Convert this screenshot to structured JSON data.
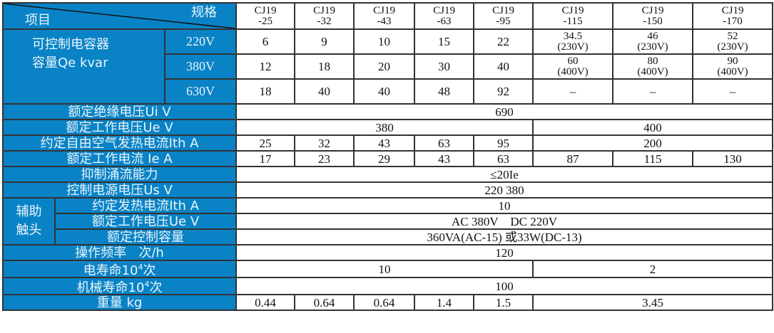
{
  "header": {
    "spec_label": "规格",
    "item_label": "项目",
    "models": [
      [
        "CJ19",
        "-25"
      ],
      [
        "CJ19",
        "-32"
      ],
      [
        "CJ19",
        "-43"
      ],
      [
        "CJ19",
        "-63"
      ],
      [
        "CJ19",
        "-95"
      ],
      [
        "CJ19",
        "-115"
      ],
      [
        "CJ19",
        "-150"
      ],
      [
        "CJ19",
        "-170"
      ]
    ]
  },
  "capacitor": {
    "label_line1": "可控制电容器",
    "label_line2": "容量Qe kvar",
    "rows": [
      {
        "voltage": "220V",
        "values": [
          "6",
          "9",
          "10",
          "15",
          "22"
        ],
        "extra": [
          [
            "34.5",
            "(230V)"
          ],
          [
            "46",
            "(230V)"
          ],
          [
            "52",
            "(230V)"
          ]
        ]
      },
      {
        "voltage": "380V",
        "values": [
          "12",
          "18",
          "20",
          "30",
          "40"
        ],
        "extra": [
          [
            "60",
            "(400V)"
          ],
          [
            "80",
            "(400V)"
          ],
          [
            "90",
            "(400V)"
          ]
        ]
      },
      {
        "voltage": "630V",
        "values": [
          "18",
          "40",
          "40",
          "48",
          "92"
        ],
        "extra": [
          [
            "–"
          ],
          [
            "–"
          ],
          [
            "–"
          ]
        ]
      }
    ]
  },
  "ui": {
    "label": "额定绝缘电压Ui  V",
    "value": "690"
  },
  "ue": {
    "label": "额定工作电压Ue  V",
    "value_a": "380",
    "value_b": "400"
  },
  "ith": {
    "label": "约定自由空气发热电流Ith  A",
    "values": [
      "25",
      "32",
      "43",
      "63",
      "95"
    ],
    "value_b": "200"
  },
  "ie": {
    "label": "额定工作电流 Ie  A",
    "values": [
      "17",
      "23",
      "29",
      "43",
      "63",
      "87",
      "115",
      "130"
    ]
  },
  "surge": {
    "label": "抑制涌流能力",
    "value": "≤20Ie"
  },
  "us": {
    "label": "控制电源电压Us   V",
    "value": "220 380"
  },
  "aux": {
    "label_line1": "辅助",
    "label_line2": "触头",
    "ith": {
      "label": "约定发热电流Ith   A",
      "value": "10"
    },
    "ue": {
      "label": "额定工作电压Ue    V",
      "value": "AC 380V    DC 220V"
    },
    "cap": {
      "label": "额定控制容量",
      "value": "360VA(AC-15) 或33W(DC-13)"
    }
  },
  "freq": {
    "label": "操作频率   次/h",
    "value": "120"
  },
  "elec_life": {
    "label_pre": "电寿命10",
    "label_sup": "4",
    "label_post": "次",
    "value_a": "10",
    "value_b": "2"
  },
  "mech_life": {
    "label_pre": "机械寿命10",
    "label_sup": "4",
    "label_post": "次",
    "value": "100"
  },
  "weight": {
    "label": "重量 kg",
    "values": [
      "0.44",
      "0.64",
      "0.64",
      "1.4",
      "1.5"
    ],
    "value_b": "3.45"
  },
  "colors": {
    "header_blue": "#0a83c6",
    "border": "#333333"
  }
}
